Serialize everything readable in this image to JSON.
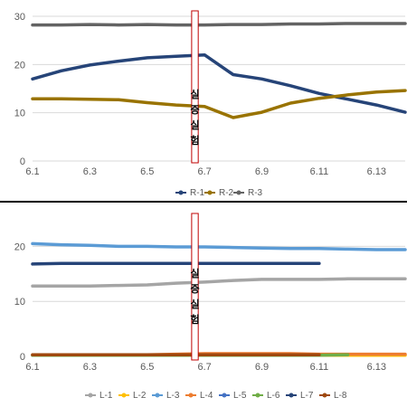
{
  "chart_data": [
    {
      "type": "line",
      "x": [
        "6.1",
        "6.2",
        "6.3",
        "6.4",
        "6.5",
        "6.6",
        "6.7",
        "6.8",
        "6.9",
        "6.10",
        "6.11",
        "6.12",
        "6.13",
        "6.14"
      ],
      "x_tick_labels": [
        "6.1",
        "6.3",
        "6.5",
        "6.7",
        "6.9",
        "6.11",
        "6.13"
      ],
      "ylim": [
        0,
        30
      ],
      "y_ticks": [
        0,
        10,
        20,
        30
      ],
      "grid": true,
      "legend_position": "bottom",
      "annotation": {
        "text": [
          "실",
          "증",
          "실",
          "험"
        ],
        "x_start": "6.6",
        "x_end": "6.7"
      },
      "series": [
        {
          "name": "R-1",
          "color": "#264478",
          "values": [
            17.0,
            18.7,
            19.9,
            20.7,
            21.4,
            21.7,
            22.0,
            17.9,
            17.0,
            15.6,
            14.0,
            12.8,
            11.6,
            10.1
          ]
        },
        {
          "name": "R-2",
          "color": "#997300",
          "values": [
            12.9,
            12.9,
            12.8,
            12.7,
            12.1,
            11.6,
            11.3,
            9.0,
            10.1,
            12.0,
            13.0,
            13.7,
            14.3,
            14.6
          ]
        },
        {
          "name": "R-3",
          "color": "#636363",
          "values": [
            28.2,
            28.2,
            28.3,
            28.2,
            28.3,
            28.2,
            28.2,
            28.3,
            28.3,
            28.4,
            28.4,
            28.5,
            28.5,
            28.5
          ]
        }
      ]
    },
    {
      "type": "line",
      "x": [
        "6.1",
        "6.2",
        "6.3",
        "6.4",
        "6.5",
        "6.6",
        "6.7",
        "6.8",
        "6.9",
        "6.10",
        "6.11",
        "6.12",
        "6.13",
        "6.14"
      ],
      "x_tick_labels": [
        "6.1",
        "6.3",
        "6.5",
        "6.7",
        "6.9",
        "6.11",
        "6.13"
      ],
      "ylim": [
        0,
        25
      ],
      "y_ticks": [
        0,
        10,
        20
      ],
      "grid": true,
      "legend_position": "bottom",
      "annotation": {
        "text": [
          "실",
          "증",
          "실",
          "험"
        ],
        "x_start": "6.6",
        "x_end": "6.7"
      },
      "series": [
        {
          "name": "L-1",
          "color": "#a5a5a5",
          "values": [
            12.8,
            12.8,
            12.8,
            12.9,
            13.0,
            13.3,
            13.5,
            13.8,
            14.0,
            14.0,
            14.0,
            14.1,
            14.1,
            14.1
          ]
        },
        {
          "name": "L-2",
          "color": "#ffc000",
          "values": [
            0.2,
            0.2,
            0.2,
            0.2,
            0.2,
            0.2,
            0.2,
            0.2,
            0.2,
            0.2,
            0.2,
            0.2,
            0.2,
            0.2
          ]
        },
        {
          "name": "L-3",
          "color": "#5b9bd5",
          "values": [
            20.5,
            20.3,
            20.2,
            20.0,
            20.0,
            19.9,
            19.9,
            19.8,
            19.7,
            19.6,
            19.6,
            19.5,
            19.4,
            19.4
          ]
        },
        {
          "name": "L-4",
          "color": "#ed7d31",
          "values": [
            0.3,
            0.3,
            0.3,
            0.3,
            0.3,
            0.4,
            0.5,
            0.5,
            0.5,
            0.5,
            0.4,
            0.4,
            0.4,
            0.4
          ]
        },
        {
          "name": "L-5",
          "color": "#4472c4",
          "values": [
            0.2,
            0.2,
            0.2,
            0.2,
            0.2,
            0.2,
            0.2,
            0.2,
            0.2,
            0.2,
            0.2,
            null,
            null,
            null
          ]
        },
        {
          "name": "L-6",
          "color": "#70ad47",
          "values": [
            0.2,
            0.2,
            0.2,
            0.2,
            0.2,
            0.2,
            0.2,
            0.2,
            0.2,
            0.2,
            0.2,
            0.3,
            null,
            null
          ]
        },
        {
          "name": "L-7",
          "color": "#264478",
          "values": [
            16.8,
            16.9,
            16.9,
            16.9,
            16.9,
            16.9,
            16.9,
            16.9,
            16.9,
            16.9,
            16.9,
            null,
            null,
            null
          ]
        },
        {
          "name": "L-8",
          "color": "#9e480e",
          "values": [
            0.3,
            0.3,
            0.3,
            0.3,
            0.3,
            0.3,
            0.3,
            0.3,
            0.3,
            0.3,
            0.3,
            null,
            null,
            null
          ]
        }
      ]
    }
  ]
}
